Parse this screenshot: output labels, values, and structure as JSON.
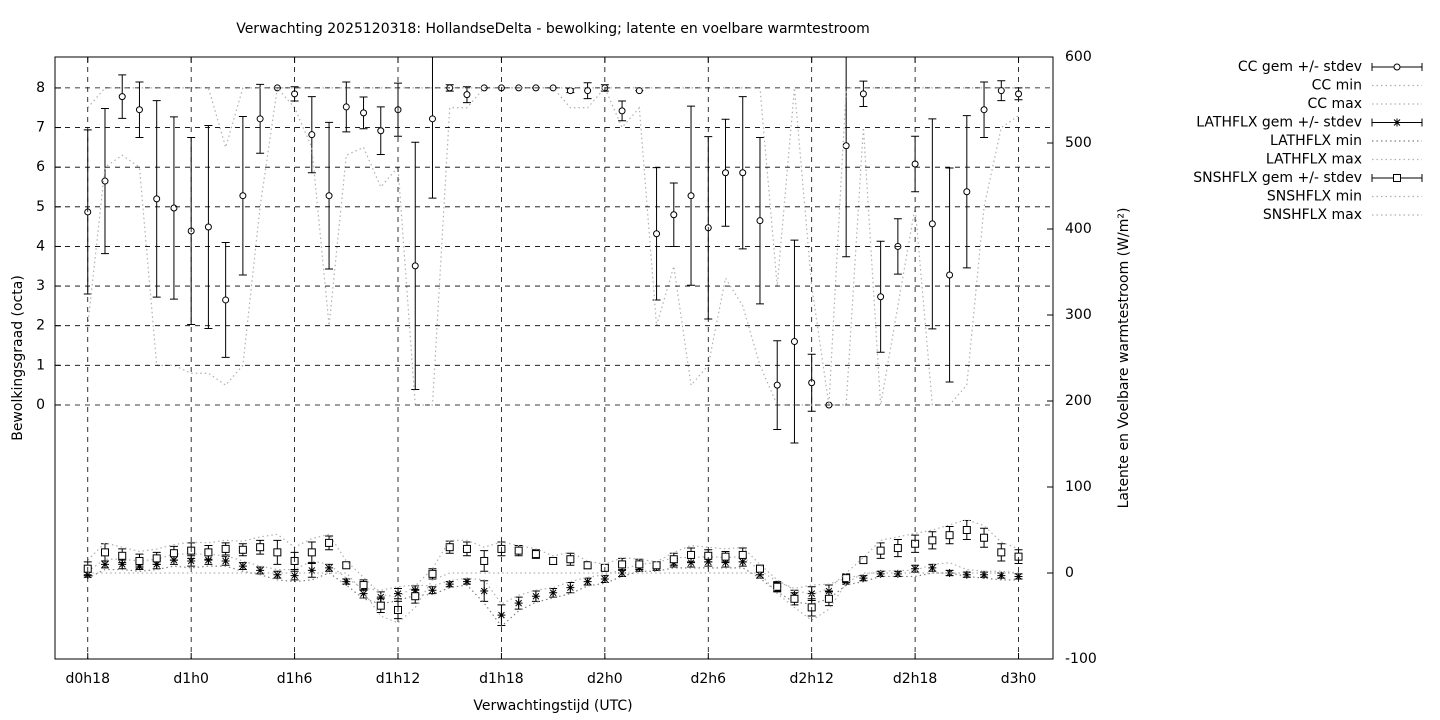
{
  "chart_data": {
    "type": "line",
    "title": "Verwachting 2025120318: HollandseDelta - bewolking; latente en voelbare warmtestroom",
    "xlabel": "Verwachtingstijd (UTC)",
    "ylabel": "Bewolkingsgraad (octa)",
    "y2label": "Latente en Voelbare warmtestroom (W/m²)",
    "x": [
      18,
      19,
      20,
      21,
      22,
      23,
      24,
      25,
      26,
      27,
      28,
      29,
      30,
      31,
      32,
      33,
      34,
      35,
      36,
      37,
      38,
      39,
      40,
      41,
      42,
      43,
      44,
      45,
      46,
      47,
      48,
      49,
      50,
      51,
      52,
      53,
      54,
      55,
      56,
      57,
      58,
      59,
      60,
      61,
      62,
      63,
      64,
      65,
      66,
      67,
      68,
      69,
      70,
      71,
      72
    ],
    "xlim": [
      16.1,
      74.0
    ],
    "xticks": [
      {
        "value": 18,
        "label": "d0h18"
      },
      {
        "value": 24,
        "label": "d1h0"
      },
      {
        "value": 30,
        "label": "d1h6"
      },
      {
        "value": 36,
        "label": "d1h12"
      },
      {
        "value": 42,
        "label": "d1h18"
      },
      {
        "value": 48,
        "label": "d2h0"
      },
      {
        "value": 54,
        "label": "d2h6"
      },
      {
        "value": 60,
        "label": "d2h12"
      },
      {
        "value": 66,
        "label": "d2h18"
      },
      {
        "value": 72,
        "label": "d3h0"
      }
    ],
    "ylim": [
      -6.41,
      8.78
    ],
    "yticks": [
      0,
      1,
      2,
      3,
      4,
      5,
      6,
      7,
      8
    ],
    "y2lim": [
      -100,
      600
    ],
    "y2ticks": [
      -100,
      0,
      100,
      200,
      300,
      400,
      500,
      600
    ],
    "grid": true,
    "legend": "outside-right",
    "series": [
      {
        "name": "CC gem +/- stdev",
        "style": "errorbars",
        "symbol": "circle",
        "color": "#000000",
        "values": [
          4.87,
          5.65,
          7.78,
          7.45,
          5.2,
          4.97,
          4.39,
          4.49,
          2.65,
          5.28,
          7.22,
          8,
          7.85,
          6.82,
          5.28,
          7.52,
          7.37,
          6.92,
          7.45,
          3.51,
          7.22,
          8,
          7.83,
          8,
          8,
          8,
          8,
          8,
          7.93,
          7.93,
          8,
          7.42,
          7.93,
          4.32,
          4.8,
          5.28,
          4.47,
          5.86,
          5.86,
          4.65,
          0.5,
          1.6,
          0.56,
          0,
          6.54,
          7.85,
          2.73,
          4.0,
          6.08,
          4.57,
          3.28,
          5.38,
          7.45,
          7.93,
          7.85
        ],
        "errors": [
          2.07,
          1.83,
          0.55,
          0.7,
          2.48,
          2.3,
          2.36,
          2.56,
          1.45,
          2.0,
          0.87,
          0,
          0.18,
          0.96,
          1.85,
          0.63,
          0.4,
          0.6,
          0.67,
          3.12,
          2.0,
          0.08,
          0.2,
          0,
          0,
          0,
          0,
          0,
          0.05,
          0.2,
          0.08,
          0.25,
          0,
          1.67,
          0.8,
          2.26,
          2.3,
          1.35,
          1.92,
          2.1,
          1.12,
          2.56,
          0.72,
          0,
          2.8,
          0.32,
          1.4,
          0.7,
          0.7,
          2.65,
          2.7,
          1.92,
          0.7,
          0.25,
          0.15
        ]
      },
      {
        "name": "CC min",
        "style": "dotted",
        "color": "#b0b0b0",
        "values": [
          2,
          6,
          6.3,
          6,
          1,
          1,
          0.8,
          0.8,
          0.5,
          1,
          5,
          8,
          7.5,
          6.5,
          2,
          6.3,
          6.5,
          5.5,
          6,
          0,
          0,
          7.5,
          7.5,
          8,
          8,
          8,
          8,
          8,
          7.5,
          7.5,
          8,
          7,
          7.5,
          2,
          3.5,
          0.5,
          1,
          3.2,
          2.5,
          1,
          0,
          0,
          0,
          0,
          0,
          7,
          0,
          2.5,
          5,
          0,
          0,
          0.5,
          5,
          7,
          7.3
        ]
      },
      {
        "name": "CC max",
        "style": "dotted",
        "color": "#b0b0b0",
        "values": [
          7.5,
          8,
          8,
          8,
          8,
          8,
          8,
          8,
          6.5,
          8,
          8,
          8,
          8,
          8,
          8,
          8,
          8,
          8,
          8,
          8,
          8,
          8,
          8,
          8,
          8,
          8,
          8,
          8,
          8,
          8,
          8,
          8,
          8,
          8,
          8,
          8,
          8,
          8,
          8,
          8,
          3,
          8,
          3,
          0,
          8,
          8,
          8,
          8,
          8,
          8,
          8,
          8,
          8,
          8,
          8
        ]
      },
      {
        "name": "LATHFLX gem +/- stdev",
        "style": "errorbars",
        "symbol": "star",
        "color": "#000000",
        "axis": "y2",
        "values": [
          -2,
          10,
          10,
          8,
          10,
          15,
          14,
          15,
          14,
          8,
          3,
          -2,
          -3,
          3,
          6,
          -10,
          -24,
          -28,
          -24,
          -20,
          -20,
          -13,
          -10,
          -21,
          -49,
          -35,
          -27,
          -23,
          -17,
          -10,
          -7,
          0,
          6,
          7,
          12,
          12,
          13,
          12,
          13,
          -2,
          -16,
          -26,
          -24,
          -21,
          -10,
          -6,
          -1,
          -1,
          5,
          6,
          0,
          -2,
          -2,
          -3,
          -4
        ],
        "errors": [
          3,
          4,
          5,
          4,
          5,
          5,
          6,
          5,
          5,
          4,
          4,
          4,
          5,
          8,
          4,
          3,
          5,
          6,
          6,
          5,
          4,
          3,
          3,
          12,
          12,
          7,
          6,
          5,
          6,
          4,
          4,
          4,
          4,
          4,
          5,
          5,
          5,
          5,
          5,
          4,
          5,
          6,
          8,
          7,
          3,
          3,
          3,
          3,
          4,
          4,
          3,
          3,
          3,
          3,
          3
        ]
      },
      {
        "name": "LATHFLX min",
        "style": "dotted",
        "color": "#808080",
        "axis": "y2",
        "values": [
          -6,
          4,
          4,
          2,
          4,
          8,
          6,
          8,
          8,
          2,
          -2,
          -8,
          -10,
          -8,
          0,
          -14,
          -30,
          -36,
          -32,
          -26,
          -25,
          -17,
          -14,
          -35,
          -62,
          -44,
          -34,
          -29,
          -24,
          -15,
          -12,
          -4,
          2,
          2,
          6,
          6,
          6,
          6,
          6,
          -6,
          -22,
          -34,
          -36,
          -30,
          -14,
          -10,
          -4,
          -4,
          -4,
          0,
          0,
          -4,
          -6,
          -8,
          -8
        ]
      },
      {
        "name": "LATHFLX max",
        "style": "dotted",
        "color": "#b0b0b0",
        "axis": "y2",
        "values": [
          2,
          16,
          16,
          14,
          16,
          22,
          22,
          22,
          20,
          14,
          8,
          4,
          4,
          14,
          10,
          -6,
          -18,
          -20,
          -16,
          -14,
          -15,
          -9,
          -6,
          -8,
          -36,
          -26,
          -20,
          -17,
          -10,
          -5,
          -2,
          4,
          10,
          12,
          18,
          18,
          19,
          18,
          19,
          3,
          -10,
          -18,
          -14,
          -13,
          -6,
          -2,
          2,
          3,
          3,
          10,
          12,
          4,
          2,
          2,
          0
        ]
      },
      {
        "name": "SNSHFLX gem +/- stdev",
        "style": "errorbars",
        "symbol": "square",
        "color": "#000000",
        "axis": "y2",
        "values": [
          5,
          24,
          20,
          14,
          17,
          23,
          26,
          24,
          28,
          27,
          30,
          24,
          14,
          24,
          35,
          9,
          -14,
          -38,
          -43,
          -27,
          -1,
          30,
          28,
          14,
          28,
          26,
          22,
          14,
          16,
          9,
          6,
          10,
          10,
          9,
          16,
          21,
          20,
          19,
          21,
          5,
          -16,
          -30,
          -40,
          -30,
          -6,
          15,
          26,
          29,
          34,
          38,
          44,
          50,
          41,
          24,
          19
        ],
        "errors": [
          8,
          10,
          8,
          8,
          7,
          8,
          9,
          8,
          7,
          7,
          8,
          14,
          10,
          12,
          8,
          3,
          6,
          8,
          10,
          8,
          6,
          7,
          8,
          12,
          8,
          6,
          5,
          4,
          7,
          4,
          3,
          7,
          6,
          3,
          7,
          8,
          7,
          6,
          8,
          4,
          6,
          7,
          10,
          8,
          5,
          3,
          9,
          10,
          10,
          10,
          10,
          11,
          11,
          10,
          8
        ]
      },
      {
        "name": "SNSHFLX min",
        "style": "dotted",
        "color": "#b0b0b0",
        "axis": "y2",
        "values": [
          0,
          0,
          0,
          0,
          0,
          0,
          0,
          0,
          0,
          0,
          0,
          0,
          0,
          0,
          0,
          0,
          -22,
          -50,
          -58,
          -40,
          -8,
          0,
          0,
          0,
          0,
          0,
          0,
          0,
          0,
          0,
          0,
          0,
          0,
          0,
          0,
          0,
          0,
          0,
          0,
          0,
          -24,
          -40,
          -55,
          -42,
          -12,
          0,
          0,
          0,
          0,
          0,
          0,
          0,
          0,
          0,
          0
        ]
      },
      {
        "name": "SNSHFLX max",
        "style": "dotted",
        "color": "#b0b0b0",
        "axis": "y2",
        "values": [
          15,
          35,
          30,
          25,
          28,
          33,
          36,
          35,
          38,
          37,
          42,
          45,
          30,
          40,
          45,
          14,
          -5,
          -25,
          -28,
          -15,
          5,
          38,
          38,
          30,
          36,
          32,
          28,
          20,
          24,
          14,
          10,
          18,
          16,
          13,
          24,
          32,
          30,
          28,
          30,
          10,
          -8,
          -20,
          -25,
          -18,
          0,
          18,
          38,
          42,
          46,
          50,
          56,
          62,
          55,
          36,
          28
        ]
      }
    ]
  }
}
